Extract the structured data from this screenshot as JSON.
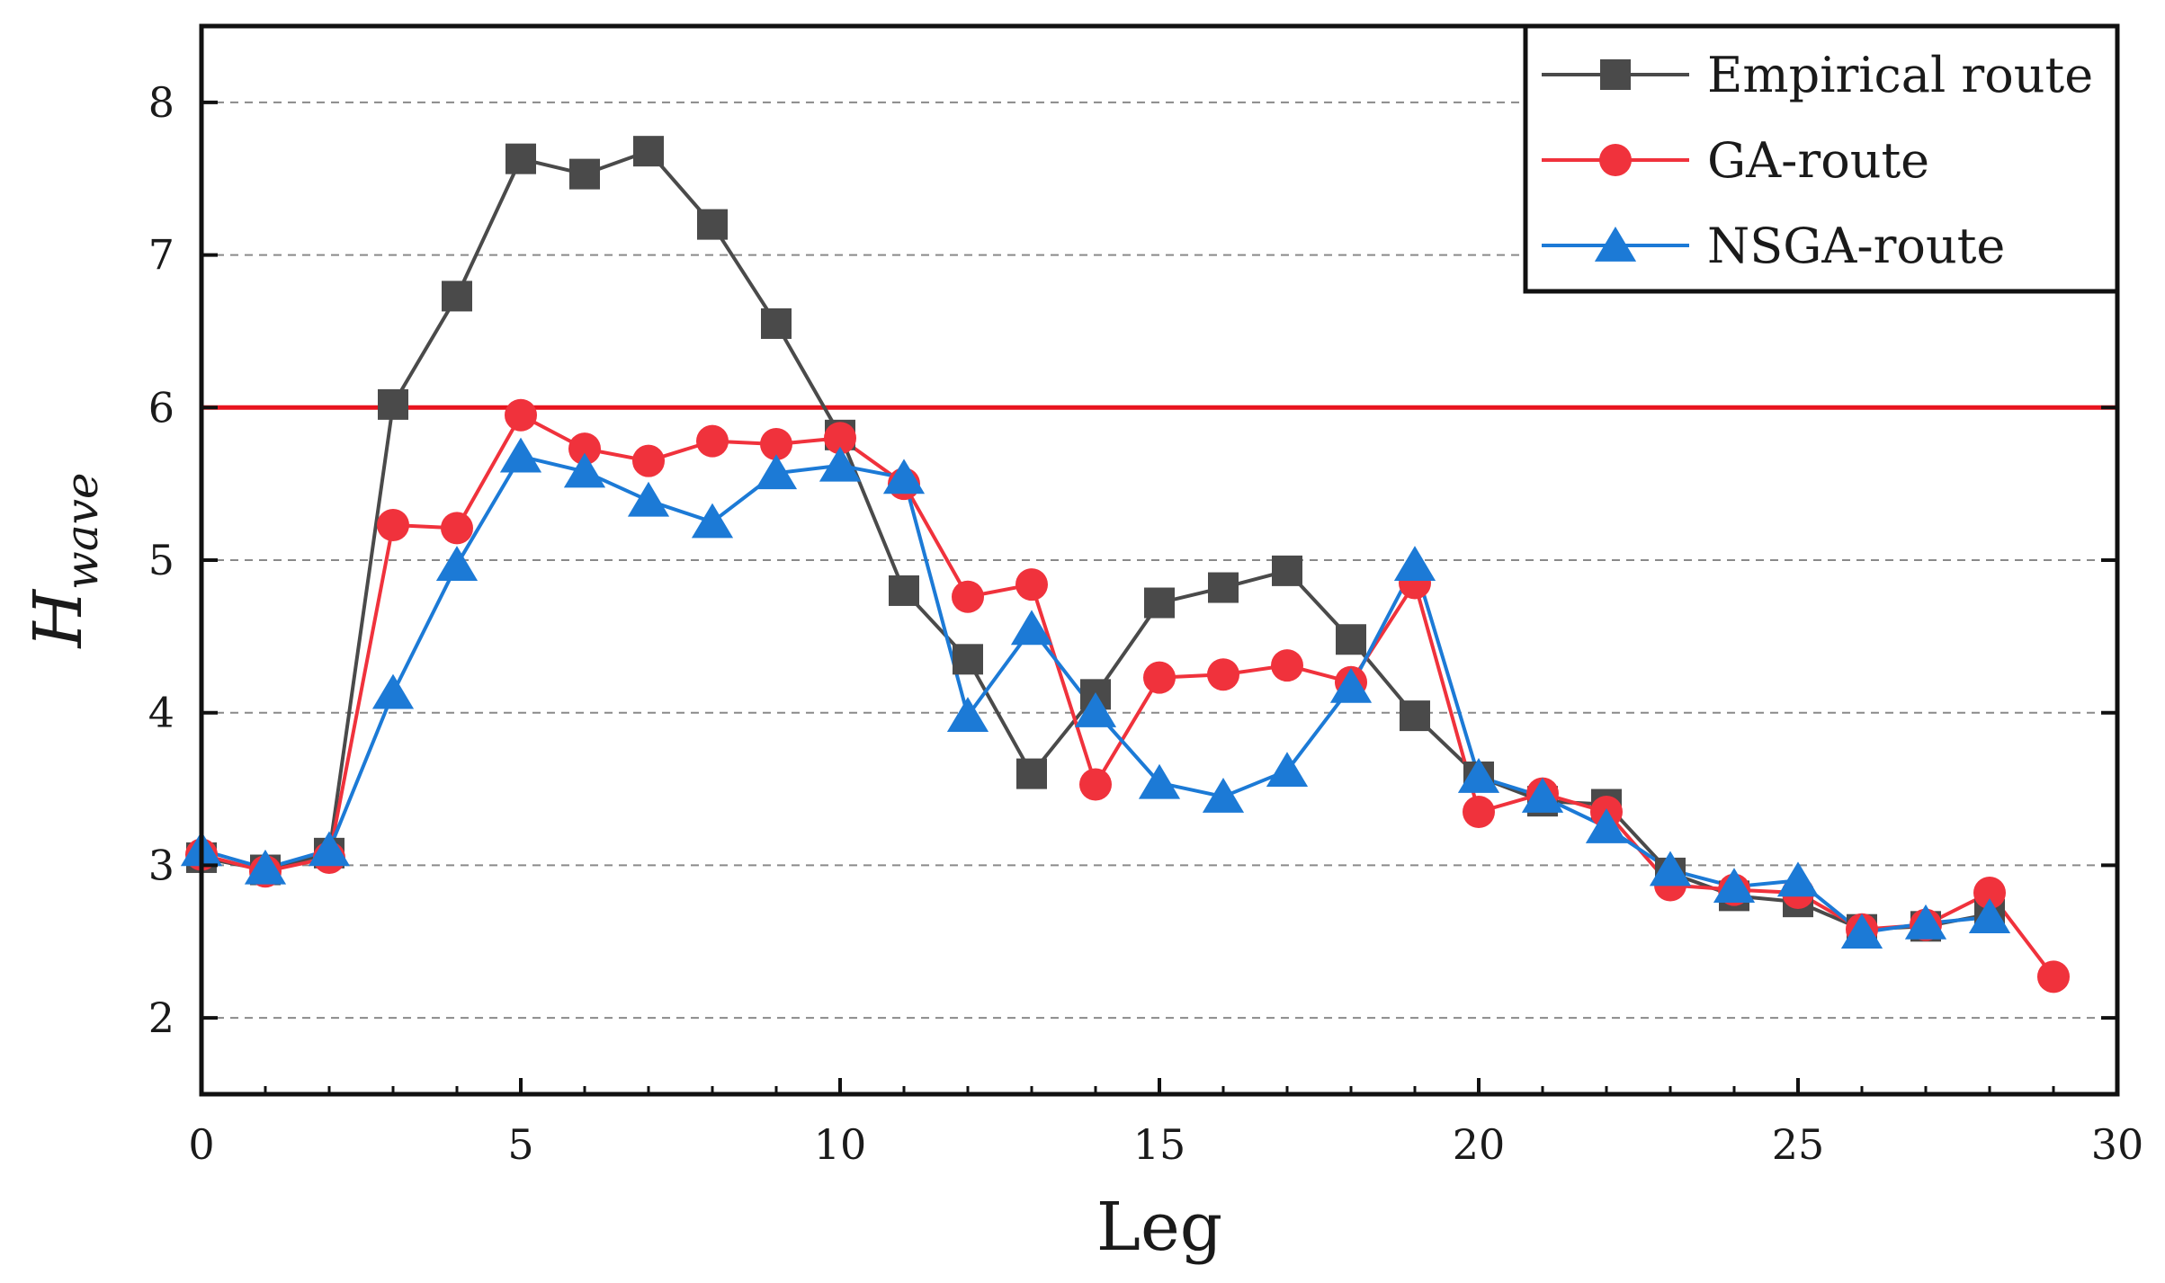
{
  "chart_data": {
    "type": "line",
    "title": "",
    "xlabel": "Leg",
    "ylabel": {
      "base": "H",
      "subscript": "wave"
    },
    "xlim": [
      0,
      30
    ],
    "ylim": [
      1.5,
      8.5
    ],
    "xticks": [
      0,
      5,
      10,
      15,
      20,
      25,
      30
    ],
    "yticks": [
      2,
      3,
      4,
      5,
      6,
      7,
      8
    ],
    "grid": "horizontal dashed",
    "threshold": {
      "y": 6,
      "color": "#e8141e"
    },
    "legend_position": "top-right",
    "series": [
      {
        "name": "Empirical route",
        "color": "#4a4a4a",
        "marker": "square",
        "x": [
          0,
          1,
          2,
          3,
          4,
          5,
          6,
          7,
          8,
          9,
          10,
          11,
          12,
          13,
          14,
          15,
          16,
          17,
          18,
          19,
          20,
          21,
          22,
          23,
          24,
          25,
          26,
          27,
          28
        ],
        "values": [
          3.05,
          2.97,
          3.08,
          6.02,
          6.73,
          7.63,
          7.53,
          7.68,
          7.2,
          6.55,
          5.82,
          4.8,
          4.35,
          3.6,
          4.12,
          4.72,
          4.82,
          4.93,
          4.48,
          3.98,
          3.58,
          3.42,
          3.4,
          2.95,
          2.8,
          2.76,
          2.58,
          2.6,
          2.68
        ]
      },
      {
        "name": "GA-route",
        "color": "#f0323c",
        "marker": "circle",
        "x": [
          0,
          1,
          2,
          3,
          4,
          5,
          6,
          7,
          8,
          9,
          10,
          11,
          12,
          13,
          14,
          15,
          16,
          17,
          18,
          19,
          20,
          21,
          22,
          23,
          24,
          25,
          26,
          27,
          28,
          29
        ],
        "values": [
          3.07,
          2.96,
          3.05,
          5.23,
          5.21,
          5.95,
          5.73,
          5.65,
          5.78,
          5.76,
          5.8,
          5.5,
          4.76,
          4.84,
          3.53,
          4.23,
          4.25,
          4.31,
          4.2,
          4.85,
          3.35,
          3.47,
          3.35,
          2.87,
          2.84,
          2.82,
          2.58,
          2.61,
          2.82,
          2.27
        ]
      },
      {
        "name": "NSGA-route",
        "color": "#1c7ad6",
        "marker": "triangle",
        "x": [
          0,
          1,
          2,
          3,
          4,
          5,
          6,
          7,
          8,
          9,
          10,
          11,
          12,
          13,
          14,
          15,
          16,
          17,
          18,
          19,
          20,
          21,
          22,
          23,
          24,
          25,
          26,
          27,
          28
        ],
        "values": [
          3.1,
          2.98,
          3.1,
          4.13,
          4.97,
          5.68,
          5.58,
          5.39,
          5.25,
          5.57,
          5.62,
          5.54,
          3.98,
          4.55,
          4.01,
          3.54,
          3.45,
          3.62,
          4.17,
          4.97,
          3.58,
          3.45,
          3.25,
          2.97,
          2.86,
          2.9,
          2.56,
          2.62,
          2.66
        ]
      }
    ]
  }
}
